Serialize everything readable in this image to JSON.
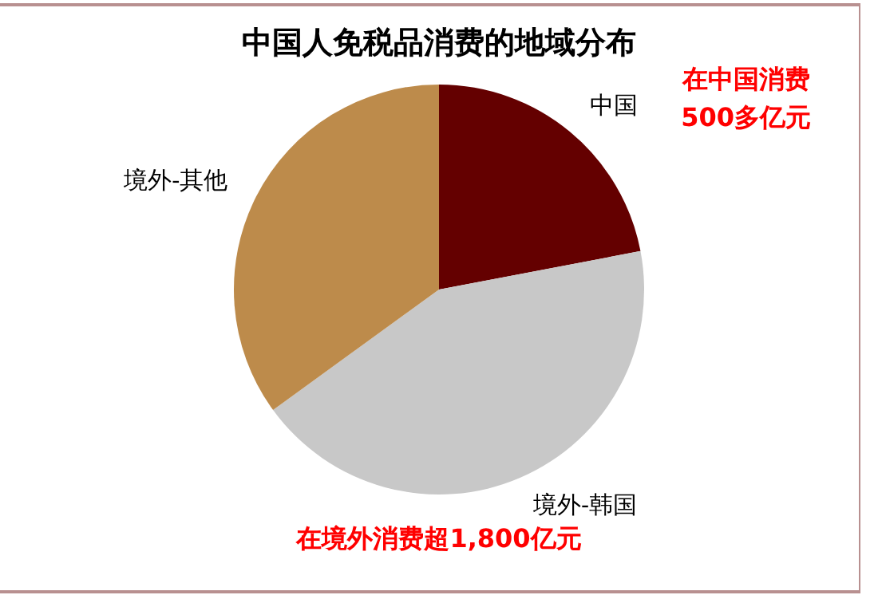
{
  "chart_data": {
    "type": "pie",
    "title": "中国人免税品消费的地域分布",
    "categories": [
      "中国",
      "境外-韩国",
      "境外-其他"
    ],
    "values": [
      22,
      43,
      35
    ],
    "colors": [
      "#640000",
      "#c8c8c8",
      "#bd8b4b"
    ],
    "legend": false,
    "annotations": [
      "在中国消费\n500多亿元",
      "在境外消费超1,800亿元"
    ]
  }
}
